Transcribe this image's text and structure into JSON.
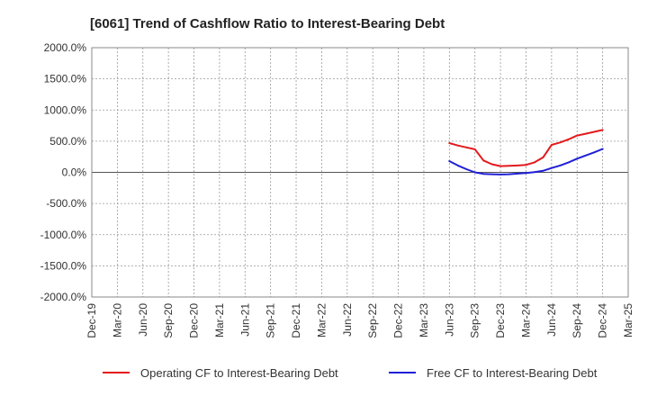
{
  "chart_data": {
    "type": "line",
    "title": "[6061]  Trend of Cashflow Ratio to Interest-Bearing Debt",
    "xlabel": "",
    "ylabel": "",
    "ylim": [
      -2000,
      2000
    ],
    "y_ticks": [
      2000,
      1500,
      1000,
      500,
      0,
      -500,
      -1000,
      -1500,
      -2000
    ],
    "y_tick_labels": [
      "2000.0%",
      "1500.0%",
      "1000.0%",
      "500.0%",
      "0.0%",
      "-500.0%",
      "-1000.0%",
      "-1500.0%",
      "-2000.0%"
    ],
    "x_tick_labels": [
      "Dec-19",
      "Mar-20",
      "Jun-20",
      "Sep-20",
      "Dec-20",
      "Mar-21",
      "Jun-21",
      "Sep-21",
      "Dec-21",
      "Mar-22",
      "Jun-22",
      "Sep-22",
      "Dec-22",
      "Mar-23",
      "Jun-23",
      "Sep-23",
      "Dec-23",
      "Mar-24",
      "Jun-24",
      "Sep-24",
      "Dec-24",
      "Mar-25"
    ],
    "grid": true,
    "legend_position": "bottom",
    "series": [
      {
        "name": "Operating CF to Interest-Bearing Debt",
        "color": "#e31a1c",
        "points": [
          {
            "x": "Jun-23",
            "y": 470
          },
          {
            "x": "Jul-23",
            "y": 430
          },
          {
            "x": "Aug-23",
            "y": 400
          },
          {
            "x": "Sep-23",
            "y": 370
          },
          {
            "x": "Oct-23",
            "y": 190
          },
          {
            "x": "Nov-23",
            "y": 130
          },
          {
            "x": "Dec-23",
            "y": 100
          },
          {
            "x": "Jan-24",
            "y": 105
          },
          {
            "x": "Feb-24",
            "y": 110
          },
          {
            "x": "Mar-24",
            "y": 120
          },
          {
            "x": "Apr-24",
            "y": 160
          },
          {
            "x": "May-24",
            "y": 240
          },
          {
            "x": "Jun-24",
            "y": 440
          },
          {
            "x": "Jul-24",
            "y": 480
          },
          {
            "x": "Aug-24",
            "y": 530
          },
          {
            "x": "Sep-24",
            "y": 590
          },
          {
            "x": "Oct-24",
            "y": 620
          },
          {
            "x": "Nov-24",
            "y": 650
          },
          {
            "x": "Dec-24",
            "y": 680
          }
        ]
      },
      {
        "name": "Free CF to Interest-Bearing Debt",
        "color": "#1f1fd6",
        "points": [
          {
            "x": "Jun-23",
            "y": 180
          },
          {
            "x": "Jul-23",
            "y": 110
          },
          {
            "x": "Aug-23",
            "y": 50
          },
          {
            "x": "Sep-23",
            "y": 0
          },
          {
            "x": "Oct-23",
            "y": -25
          },
          {
            "x": "Nov-23",
            "y": -30
          },
          {
            "x": "Dec-23",
            "y": -35
          },
          {
            "x": "Jan-24",
            "y": -30
          },
          {
            "x": "Feb-24",
            "y": -20
          },
          {
            "x": "Mar-24",
            "y": -10
          },
          {
            "x": "Apr-24",
            "y": 5
          },
          {
            "x": "May-24",
            "y": 25
          },
          {
            "x": "Jun-24",
            "y": 70
          },
          {
            "x": "Jul-24",
            "y": 110
          },
          {
            "x": "Aug-24",
            "y": 160
          },
          {
            "x": "Sep-24",
            "y": 220
          },
          {
            "x": "Oct-24",
            "y": 270
          },
          {
            "x": "Nov-24",
            "y": 320
          },
          {
            "x": "Dec-24",
            "y": 375
          }
        ]
      }
    ]
  }
}
